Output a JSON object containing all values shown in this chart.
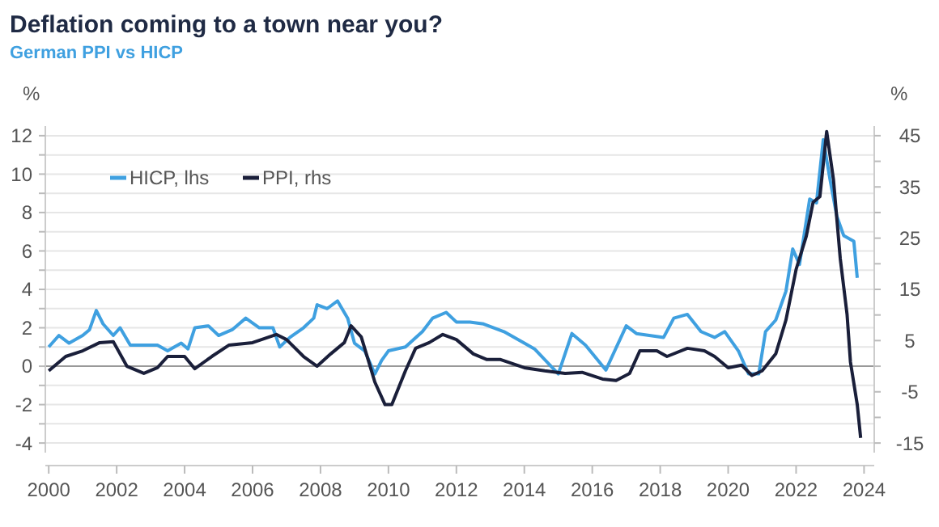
{
  "chart_data": {
    "type": "line",
    "title": "Deflation coming to a town near you?",
    "subtitle": "German PPI vs HICP",
    "ylabel": "%",
    "y2label": "%",
    "xlim": [
      1999.9,
      2024.3
    ],
    "xticks": [
      2000,
      2002,
      2004,
      2006,
      2008,
      2010,
      2012,
      2014,
      2016,
      2018,
      2020,
      2022,
      2024
    ],
    "ylim": [
      -4.5,
      12.5
    ],
    "yticks": [
      -4,
      {
        "value": -3,
        "label": null
      },
      -2,
      {
        "value": -1,
        "label": null
      },
      0,
      {
        "value": 1,
        "label": null
      },
      2,
      {
        "value": 3,
        "label": null
      },
      4,
      {
        "value": 5,
        "label": null
      },
      6,
      {
        "value": 7,
        "label": null
      },
      8,
      {
        "value": 9,
        "label": null
      },
      10,
      {
        "value": 11,
        "label": null
      },
      12
    ],
    "y2lim": [
      -16.875,
      46.875
    ],
    "y2ticks": [
      -15,
      {
        "value": -10,
        "label": null
      },
      -5,
      {
        "value": 0,
        "label": null
      },
      5,
      {
        "value": 10,
        "label": null
      },
      15,
      {
        "value": 20,
        "label": null
      },
      25,
      {
        "value": 30,
        "label": null
      },
      35,
      {
        "value": 40,
        "label": null
      },
      45
    ],
    "grid": "y",
    "legend": "top left",
    "line_style": "solid",
    "series": [
      {
        "name": "HICP, lhs",
        "color": "#3fa0e0",
        "x": [
          2000,
          2000.3,
          2000.6,
          2000.8,
          2001,
          2001.2,
          2001.4,
          2001.6,
          2001.9,
          2002.1,
          2002.4,
          2002.8,
          2003.2,
          2003.5,
          2003.9,
          2004.1,
          2004.3,
          2004.7,
          2005,
          2005.4,
          2005.8,
          2006.2,
          2006.6,
          2006.8,
          2007.1,
          2007.5,
          2007.8,
          2007.9,
          2008.2,
          2008.5,
          2008.8,
          2009,
          2009.3,
          2009.6,
          2009.8,
          2010,
          2010.5,
          2011,
          2011.3,
          2011.7,
          2012,
          2012.4,
          2012.8,
          2013.4,
          2014,
          2014.3,
          2015,
          2015.4,
          2015.8,
          2016.4,
          2017,
          2017.3,
          2018.1,
          2018.4,
          2018.8,
          2019.2,
          2019.6,
          2019.9,
          2020.3,
          2020.6,
          2020.9,
          2021.1,
          2021.4,
          2021.7,
          2021.9,
          2022.1,
          2022.4,
          2022.6,
          2022.8,
          2023,
          2023.2,
          2023.4,
          2023.7,
          2023.8
        ],
        "values": [
          1.0,
          1.6,
          1.2,
          1.4,
          1.6,
          1.9,
          2.9,
          2.2,
          1.6,
          2.0,
          1.1,
          1.1,
          1.1,
          0.8,
          1.2,
          0.9,
          2.0,
          2.1,
          1.6,
          1.9,
          2.5,
          2.0,
          2.0,
          1.0,
          1.5,
          2.0,
          2.5,
          3.2,
          3.0,
          3.4,
          2.5,
          1.2,
          0.8,
          -0.4,
          0.3,
          0.8,
          1.0,
          1.8,
          2.5,
          2.8,
          2.3,
          2.3,
          2.2,
          1.8,
          1.2,
          0.9,
          -0.4,
          1.7,
          1.1,
          -0.2,
          2.1,
          1.7,
          1.5,
          2.5,
          2.7,
          1.8,
          1.5,
          1.8,
          0.8,
          -0.4,
          -0.4,
          1.8,
          2.4,
          3.9,
          6.1,
          5.3,
          8.7,
          8.5,
          11.8,
          9.7,
          7.8,
          6.8,
          6.5,
          4.6
        ]
      },
      {
        "name": "PPI, rhs",
        "color": "#1a1f3a",
        "axis": "y2",
        "x": [
          2000,
          2000.5,
          2001,
          2001.5,
          2001.9,
          2002.3,
          2002.8,
          2003.2,
          2003.5,
          2004,
          2004.3,
          2004.8,
          2005.3,
          2006,
          2006.7,
          2007,
          2007.5,
          2007.9,
          2008.3,
          2008.7,
          2008.9,
          2009.2,
          2009.6,
          2009.9,
          2010.1,
          2010.5,
          2010.8,
          2011.2,
          2011.6,
          2012,
          2012.5,
          2012.9,
          2013.3,
          2014,
          2014.6,
          2015.2,
          2015.7,
          2016.3,
          2016.7,
          2017.1,
          2017.4,
          2017.9,
          2018.2,
          2018.8,
          2019.3,
          2019.6,
          2020,
          2020.4,
          2020.7,
          2021,
          2021.4,
          2021.7,
          2022,
          2022.3,
          2022.5,
          2022.7,
          2022.9,
          2023.1,
          2023.3,
          2023.5,
          2023.6,
          2023.8,
          2023.9
        ],
        "values": [
          -0.9,
          1.9,
          3.0,
          4.6,
          4.8,
          0,
          -1.4,
          -0.3,
          1.9,
          1.9,
          -0.5,
          1.9,
          4.1,
          4.6,
          6.2,
          5.2,
          1.9,
          0,
          2.4,
          4.6,
          7.9,
          5.7,
          -3.1,
          -7.5,
          -7.5,
          -0.9,
          3.5,
          4.6,
          6.2,
          5.2,
          2.4,
          1.3,
          1.3,
          -0.3,
          -0.9,
          -1.4,
          -1.2,
          -2.5,
          -2.8,
          -1.4,
          3.0,
          3.0,
          1.9,
          3.5,
          3.0,
          1.9,
          -0.3,
          0.2,
          -1.8,
          -0.9,
          2.4,
          9.0,
          18.9,
          25.4,
          32.0,
          33.1,
          45.8,
          36.4,
          21.0,
          10.1,
          0.8,
          -7.5,
          -14.0
        ]
      }
    ]
  }
}
